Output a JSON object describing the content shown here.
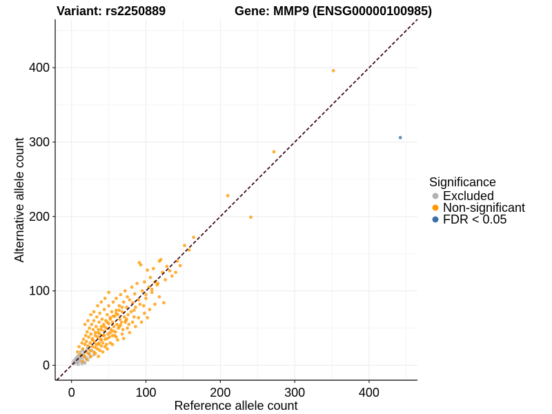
{
  "chart_data": {
    "type": "scatter",
    "title_left": "Variant: rs2250889",
    "title_right": "Gene: MMP9 (ENSG00000100985)",
    "xlabel": "Reference allele count",
    "ylabel": "Alternative allele count",
    "xlim": [
      -22,
      465
    ],
    "ylim": [
      -20,
      465
    ],
    "xticks": [
      0,
      100,
      200,
      300,
      400
    ],
    "yticks": [
      0,
      100,
      200,
      300,
      400
    ],
    "grid": true,
    "reference_line": {
      "type": "identity",
      "style": "dashed",
      "color": "#3b0a14"
    },
    "legend": {
      "title": "Significance",
      "position": "right",
      "entries": [
        {
          "label": "Excluded",
          "color": "#b3b3b3"
        },
        {
          "label": "Non-significant",
          "color": "#ff9900"
        },
        {
          "label": "FDR < 0.05",
          "color": "#3e6fa6"
        }
      ]
    },
    "series": [
      {
        "name": "Excluded",
        "color": "#b3b3b3",
        "points": [
          [
            2,
            3
          ],
          [
            3,
            6
          ],
          [
            4,
            2
          ],
          [
            5,
            8
          ],
          [
            6,
            4
          ],
          [
            6,
            10
          ],
          [
            7,
            6
          ],
          [
            8,
            12
          ],
          [
            8,
            3
          ],
          [
            9,
            9
          ],
          [
            10,
            5
          ],
          [
            10,
            14
          ],
          [
            11,
            8
          ],
          [
            12,
            11
          ],
          [
            12,
            18
          ],
          [
            13,
            5
          ],
          [
            14,
            13
          ],
          [
            15,
            9
          ],
          [
            15,
            20
          ],
          [
            16,
            15
          ],
          [
            17,
            4
          ],
          [
            18,
            12
          ],
          [
            19,
            18
          ],
          [
            20,
            10
          ],
          [
            21,
            22
          ],
          [
            22,
            7
          ],
          [
            24,
            16
          ],
          [
            25,
            11
          ],
          [
            27,
            20
          ],
          [
            30,
            14
          ],
          [
            9,
            1
          ],
          [
            14,
            2
          ],
          [
            18,
            3
          ]
        ]
      },
      {
        "name": "Non-significant",
        "color": "#ff9900",
        "points": [
          [
            8,
            18
          ],
          [
            10,
            25
          ],
          [
            12,
            14
          ],
          [
            14,
            30
          ],
          [
            15,
            22
          ],
          [
            16,
            35
          ],
          [
            17,
            12
          ],
          [
            18,
            28
          ],
          [
            19,
            40
          ],
          [
            20,
            18
          ],
          [
            20,
            32
          ],
          [
            21,
            45
          ],
          [
            22,
            26
          ],
          [
            23,
            15
          ],
          [
            23,
            38
          ],
          [
            24,
            50
          ],
          [
            25,
            30
          ],
          [
            25,
            20
          ],
          [
            26,
            42
          ],
          [
            27,
            55
          ],
          [
            28,
            25
          ],
          [
            28,
            36
          ],
          [
            29,
            48
          ],
          [
            30,
            18
          ],
          [
            30,
            60
          ],
          [
            31,
            32
          ],
          [
            32,
            44
          ],
          [
            33,
            28
          ],
          [
            33,
            52
          ],
          [
            34,
            65
          ],
          [
            35,
            22
          ],
          [
            35,
            38
          ],
          [
            36,
            48
          ],
          [
            37,
            30
          ],
          [
            37,
            58
          ],
          [
            38,
            42
          ],
          [
            38,
            70
          ],
          [
            39,
            35
          ],
          [
            40,
            26
          ],
          [
            40,
            52
          ],
          [
            41,
            62
          ],
          [
            42,
            40
          ],
          [
            42,
            30
          ],
          [
            43,
            55
          ],
          [
            44,
            46
          ],
          [
            44,
            75
          ],
          [
            45,
            35
          ],
          [
            46,
            60
          ],
          [
            47,
            50
          ],
          [
            47,
            28
          ],
          [
            48,
            68
          ],
          [
            49,
            42
          ],
          [
            50,
            56
          ],
          [
            50,
            80
          ],
          [
            51,
            38
          ],
          [
            52,
            64
          ],
          [
            53,
            48
          ],
          [
            54,
            72
          ],
          [
            55,
            40
          ],
          [
            55,
            58
          ],
          [
            56,
            85
          ],
          [
            57,
            52
          ],
          [
            58,
            66
          ],
          [
            59,
            45
          ],
          [
            60,
            74
          ],
          [
            60,
            90
          ],
          [
            61,
            55
          ],
          [
            62,
            68
          ],
          [
            63,
            50
          ],
          [
            64,
            80
          ],
          [
            65,
            62
          ],
          [
            66,
            95
          ],
          [
            67,
            58
          ],
          [
            68,
            72
          ],
          [
            69,
            48
          ],
          [
            70,
            85
          ],
          [
            71,
            65
          ],
          [
            72,
            100
          ],
          [
            73,
            60
          ],
          [
            74,
            78
          ],
          [
            75,
            92
          ],
          [
            76,
            68
          ],
          [
            77,
            55
          ],
          [
            78,
            88
          ],
          [
            80,
            72
          ],
          [
            81,
            105
          ],
          [
            82,
            84
          ],
          [
            84,
            65
          ],
          [
            85,
            96
          ],
          [
            86,
            78
          ],
          [
            88,
            110
          ],
          [
            90,
            88
          ],
          [
            91,
            138
          ],
          [
            93,
            135
          ],
          [
            95,
            100
          ],
          [
            97,
            80
          ],
          [
            98,
            112
          ],
          [
            100,
            95
          ],
          [
            102,
            128
          ],
          [
            104,
            105
          ],
          [
            106,
            118
          ],
          [
            108,
            98
          ],
          [
            110,
            130
          ],
          [
            112,
            112
          ],
          [
            115,
            108
          ],
          [
            118,
            140
          ],
          [
            120,
            142
          ],
          [
            122,
            125
          ],
          [
            124,
            84
          ],
          [
            126,
            115
          ],
          [
            128,
            133
          ],
          [
            132,
            127
          ],
          [
            135,
            120
          ],
          [
            140,
            125
          ],
          [
            142,
            140
          ],
          [
            146,
            134
          ],
          [
            152,
            161
          ],
          [
            158,
            155
          ],
          [
            164,
            172
          ],
          [
            210,
            228
          ],
          [
            241,
            199
          ],
          [
            272,
            287
          ],
          [
            352,
            396
          ],
          [
            18,
            55
          ],
          [
            22,
            60
          ],
          [
            26,
            68
          ],
          [
            30,
            72
          ],
          [
            35,
            80
          ],
          [
            40,
            85
          ],
          [
            45,
            90
          ],
          [
            50,
            98
          ],
          [
            38,
            20
          ],
          [
            45,
            25
          ],
          [
            52,
            30
          ],
          [
            60,
            38
          ],
          [
            68,
            42
          ],
          [
            75,
            50
          ],
          [
            82,
            58
          ],
          [
            90,
            64
          ],
          [
            98,
            70
          ],
          [
            105,
            75
          ],
          [
            15,
            5
          ],
          [
            20,
            8
          ],
          [
            26,
            12
          ],
          [
            32,
            16
          ],
          [
            36,
            12
          ],
          [
            42,
            18
          ],
          [
            48,
            22
          ],
          [
            55,
            28
          ],
          [
            62,
            34
          ],
          [
            70,
            36
          ],
          [
            78,
            44
          ],
          [
            86,
            52
          ],
          [
            94,
            58
          ],
          [
            102,
            64
          ],
          [
            112,
            82
          ],
          [
            118,
            92
          ],
          [
            48,
            36
          ],
          [
            58,
            40
          ],
          [
            66,
            54
          ],
          [
            74,
            62
          ],
          [
            84,
            74
          ],
          [
            92,
            82
          ],
          [
            100,
            90
          ],
          [
            108,
            102
          ],
          [
            116,
            110
          ],
          [
            32,
            24
          ],
          [
            36,
            28
          ],
          [
            40,
            34
          ],
          [
            44,
            40
          ],
          [
            52,
            44
          ],
          [
            56,
            46
          ],
          [
            64,
            52
          ],
          [
            72,
            58
          ],
          [
            28,
            34
          ],
          [
            32,
            40
          ],
          [
            36,
            44
          ],
          [
            40,
            48
          ],
          [
            44,
            52
          ],
          [
            48,
            58
          ],
          [
            52,
            62
          ],
          [
            56,
            66
          ],
          [
            60,
            70
          ],
          [
            64,
            74
          ],
          [
            68,
            78
          ]
        ]
      },
      {
        "name": "FDR < 0.05",
        "color": "#3e6fa6",
        "points": [
          [
            442,
            306
          ]
        ]
      }
    ]
  }
}
